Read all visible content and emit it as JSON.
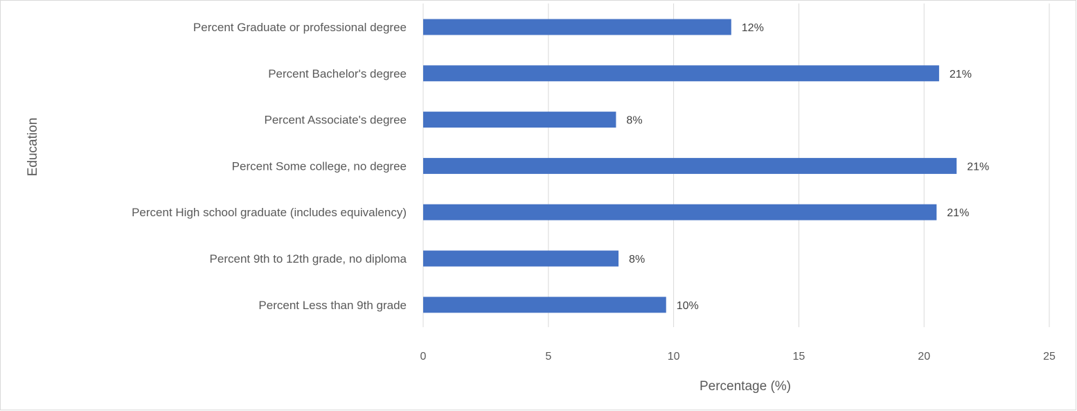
{
  "chart_data": {
    "type": "bar",
    "orientation": "horizontal",
    "categories": [
      "Percent Graduate or professional degree",
      "Percent Bachelor's degree",
      "Percent Associate's degree",
      "Percent Some college, no degree",
      "Percent High school graduate (includes equivalency)",
      "Percent 9th to 12th grade, no diploma",
      "Percent Less than 9th grade"
    ],
    "values": [
      12.3,
      20.6,
      7.7,
      21.3,
      20.5,
      7.8,
      9.7
    ],
    "data_labels": [
      "12%",
      "21%",
      "8%",
      "21%",
      "21%",
      "8%",
      "10%"
    ],
    "xlabel": "Percentage (%)",
    "ylabel": "Education",
    "xlim": [
      0,
      25
    ],
    "xticks": [
      0,
      5,
      10,
      15,
      20,
      25
    ],
    "grid": true,
    "legend": "none",
    "bar_color": "#4472C4"
  }
}
